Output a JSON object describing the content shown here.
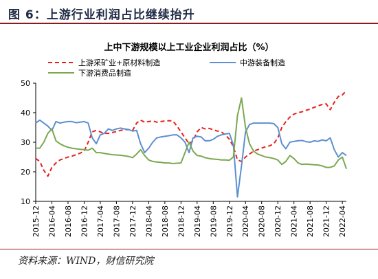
{
  "figure": {
    "title": "图 6：上游行业利润占比继续抬升",
    "source": "资料来源：WIND，财信研究院"
  },
  "chart_data": {
    "type": "line",
    "title": "上中下游规模以上工业企业利润占比（%）",
    "xlabel": "",
    "ylabel": "",
    "ylim": [
      10,
      50
    ],
    "yticks": [
      10,
      20,
      30,
      40,
      50
    ],
    "grid": false,
    "legend": "top",
    "x": [
      "2015-12",
      "2016-01",
      "2016-02",
      "2016-03",
      "2016-04",
      "2016-05",
      "2016-06",
      "2016-07",
      "2016-08",
      "2016-09",
      "2016-10",
      "2016-11",
      "2016-12",
      "2017-01",
      "2017-02",
      "2017-03",
      "2017-04",
      "2017-05",
      "2017-06",
      "2017-07",
      "2017-08",
      "2017-09",
      "2017-10",
      "2017-11",
      "2017-12",
      "2018-01",
      "2018-02",
      "2018-03",
      "2018-04",
      "2018-05",
      "2018-06",
      "2018-07",
      "2018-08",
      "2018-09",
      "2018-10",
      "2018-11",
      "2018-12",
      "2019-01",
      "2019-02",
      "2019-03",
      "2019-04",
      "2019-05",
      "2019-06",
      "2019-07",
      "2019-08",
      "2019-09",
      "2019-10",
      "2019-11",
      "2019-12",
      "2020-01",
      "2020-02",
      "2020-03",
      "2020-04",
      "2020-05",
      "2020-06",
      "2020-07",
      "2020-08",
      "2020-09",
      "2020-10",
      "2020-11",
      "2020-12",
      "2021-01",
      "2021-02",
      "2021-03",
      "2021-04",
      "2021-05",
      "2021-06",
      "2021-07",
      "2021-08",
      "2021-09",
      "2021-10",
      "2021-11",
      "2021-12",
      "2022-01",
      "2022-02",
      "2022-03",
      "2022-04",
      "2022-05"
    ],
    "xtick_labels": [
      "2015-12",
      "2016-04",
      "2016-08",
      "2016-12",
      "2017-04",
      "2017-08",
      "2017-12",
      "2018-04",
      "2018-08",
      "2018-12",
      "2019-04",
      "2019-08",
      "2019-12",
      "2020-04",
      "2020-08",
      "2020-12",
      "2021-04",
      "2021-08",
      "2021-12",
      "2022-04"
    ],
    "series": [
      {
        "name": "上游采矿业+原材料制造",
        "color": "#e8201a",
        "style": "dashed",
        "values": [
          24.5,
          23.5,
          20.5,
          18.5,
          21.5,
          23.0,
          24.0,
          24.5,
          25.0,
          25.3,
          25.8,
          26.3,
          27.0,
          30.0,
          33.5,
          34.0,
          33.5,
          33.0,
          33.0,
          33.3,
          33.6,
          34.0,
          34.2,
          34.3,
          34.0,
          36.5,
          37.5,
          36.8,
          37.0,
          37.2,
          36.8,
          37.0,
          37.2,
          37.3,
          37.2,
          35.5,
          33.5,
          31.5,
          29.5,
          30.5,
          33.5,
          35.0,
          34.5,
          34.7,
          34.2,
          33.8,
          33.5,
          32.5,
          31.0,
          28.5,
          24.0,
          23.5,
          25.0,
          26.0,
          27.0,
          27.5,
          28.0,
          28.5,
          28.8,
          29.5,
          31.5,
          35.0,
          37.0,
          38.5,
          39.5,
          40.0,
          40.3,
          40.8,
          41.2,
          41.8,
          42.3,
          42.8,
          43.0,
          41.0,
          43.5,
          45.5,
          46.0,
          47.5
        ]
      },
      {
        "name": "中游装备制造",
        "color": "#5b8fd1",
        "style": "solid",
        "values": [
          36.5,
          37.5,
          36.5,
          35.5,
          34.0,
          37.0,
          36.5,
          36.8,
          37.0,
          37.0,
          36.6,
          36.8,
          37.0,
          36.5,
          31.5,
          29.5,
          32.5,
          33.0,
          34.5,
          34.0,
          34.5,
          34.8,
          34.5,
          34.3,
          33.8,
          34.0,
          29.5,
          26.5,
          28.0,
          30.0,
          31.5,
          31.8,
          32.0,
          32.2,
          32.5,
          32.5,
          31.5,
          30.0,
          26.5,
          31.5,
          32.0,
          31.8,
          30.5,
          30.5,
          31.0,
          32.0,
          32.5,
          32.8,
          33.0,
          29.0,
          11.5,
          22.0,
          33.5,
          36.0,
          36.5,
          36.5,
          36.5,
          36.5,
          36.5,
          36.3,
          35.0,
          29.5,
          27.8,
          30.0,
          30.3,
          30.5,
          30.6,
          30.2,
          30.0,
          30.5,
          30.3,
          30.8,
          30.5,
          31.5,
          27.5,
          25.0,
          26.5,
          25.5
        ]
      },
      {
        "name": "下游消费品制造",
        "color": "#7aa850",
        "style": "solid",
        "values": [
          28.0,
          28.0,
          30.0,
          33.0,
          34.5,
          30.5,
          29.5,
          28.8,
          28.3,
          28.0,
          27.8,
          27.6,
          27.5,
          27.3,
          28.0,
          26.5,
          26.5,
          26.2,
          26.0,
          25.8,
          25.7,
          25.6,
          25.4,
          25.2,
          24.8,
          26.0,
          27.5,
          25.5,
          24.0,
          23.5,
          23.3,
          23.2,
          23.0,
          23.0,
          22.8,
          22.9,
          23.0,
          26.5,
          30.0,
          27.0,
          25.5,
          25.3,
          24.8,
          24.5,
          24.3,
          24.2,
          24.0,
          24.0,
          23.9,
          25.0,
          39.0,
          45.0,
          35.0,
          29.5,
          27.0,
          26.0,
          25.5,
          25.0,
          24.8,
          24.5,
          24.0,
          22.5,
          23.5,
          25.5,
          24.5,
          23.0,
          22.5,
          22.6,
          22.5,
          22.4,
          22.3,
          22.0,
          21.5,
          21.5,
          22.0,
          24.0,
          25.0,
          21.0
        ]
      }
    ]
  }
}
